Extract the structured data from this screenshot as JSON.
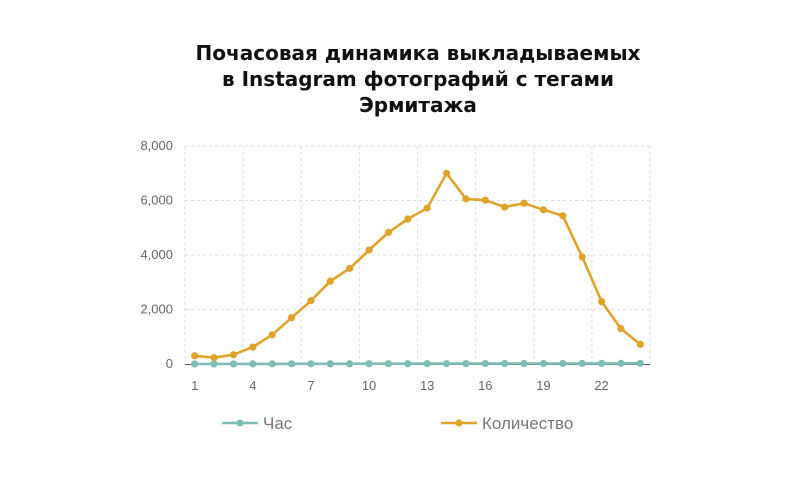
{
  "chart_data": {
    "type": "line",
    "title_lines": [
      "Почасовая динамика выкладываемых",
      "в Instagram фотографий с тегами",
      "Эрмитажа"
    ],
    "x": [
      1,
      2,
      3,
      4,
      5,
      6,
      7,
      8,
      9,
      10,
      11,
      12,
      13,
      14,
      15,
      16,
      17,
      18,
      19,
      20,
      21,
      22,
      23,
      24
    ],
    "x_tick_labels": [
      "1",
      "4",
      "7",
      "10",
      "13",
      "16",
      "19",
      "22"
    ],
    "y_tick_labels": [
      "0",
      "2,000",
      "4,000",
      "6,000",
      "8,000"
    ],
    "ylim": [
      0,
      8000
    ],
    "grid": true,
    "legend_position": "bottom",
    "series": [
      {
        "name": "Час",
        "color": "#7dbdb5",
        "values": [
          1,
          2,
          3,
          4,
          5,
          6,
          7,
          8,
          9,
          10,
          11,
          12,
          13,
          14,
          15,
          16,
          17,
          18,
          19,
          20,
          21,
          22,
          23,
          24
        ]
      },
      {
        "name": "Количество",
        "color": "#e0a32a",
        "values": [
          300,
          230,
          340,
          620,
          1070,
          1700,
          2320,
          3040,
          3510,
          4180,
          4830,
          5320,
          5720,
          7000,
          6060,
          6010,
          5760,
          5900,
          5660,
          5440,
          3930,
          2290,
          1300,
          720
        ]
      }
    ]
  }
}
